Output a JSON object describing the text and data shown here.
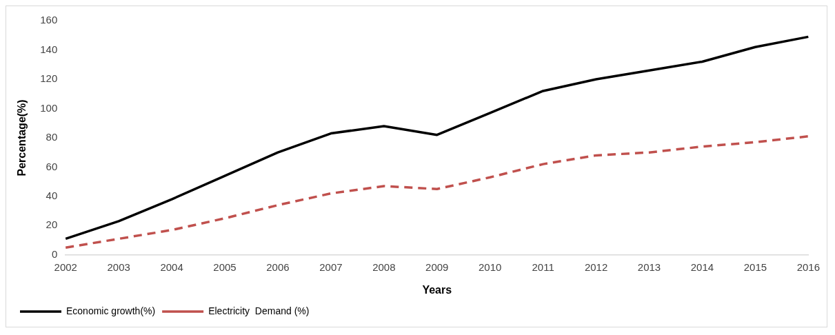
{
  "chart_data": {
    "type": "line",
    "xlabel": "Years",
    "ylabel": "Percentage(%)",
    "categories": [
      "2002",
      "2003",
      "2004",
      "2005",
      "2006",
      "2007",
      "2008",
      "2009",
      "2010",
      "2011",
      "2012",
      "2013",
      "2014",
      "2015",
      "2016"
    ],
    "series": [
      {
        "name": "Economic growth(%)",
        "color": "#000000",
        "line_style": "solid",
        "values": [
          11,
          23,
          38,
          54,
          70,
          83,
          88,
          82,
          97,
          112,
          120,
          126,
          132,
          142,
          149
        ]
      },
      {
        "name": "Electricity  Demand (%)",
        "color": "#c0504d",
        "line_style": "dashed",
        "values": [
          5,
          11,
          17,
          25,
          34,
          42,
          47,
          45,
          53,
          62,
          68,
          70,
          74,
          77,
          81
        ]
      }
    ],
    "ylim": [
      0,
      160
    ],
    "yticks": [
      0,
      20,
      40,
      60,
      80,
      100,
      120,
      140,
      160
    ],
    "grid": false,
    "legend": "bottom left",
    "marker": "none"
  }
}
